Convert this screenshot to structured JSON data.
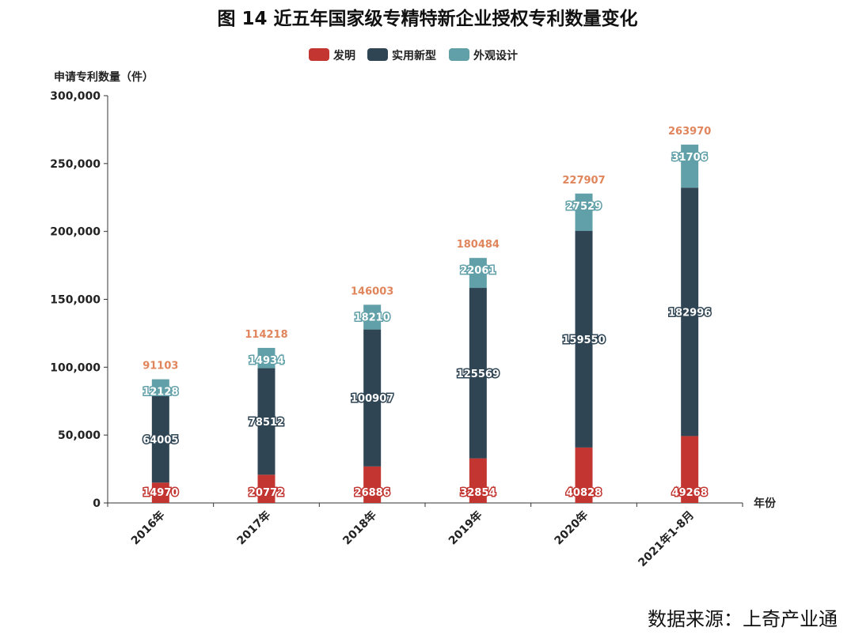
{
  "title": "图 14  近五年国家级专精特新企业授权专利数量变化",
  "source": "数据来源：上奇产业通",
  "chart_data": {
    "type": "bar",
    "stacked": true,
    "title": "图 14  近五年国家级专精特新企业授权专利数量变化",
    "xlabel": "年份",
    "ylabel": "申请专利数量（件）",
    "ylim": [
      0,
      300000
    ],
    "yticks": [
      0,
      50000,
      100000,
      150000,
      200000,
      250000,
      300000
    ],
    "ytick_labels": [
      "0",
      "50,000",
      "100,000",
      "150,000",
      "200,000",
      "250,000",
      "300,000"
    ],
    "grid": false,
    "legend_position": "top",
    "categories": [
      "2016年",
      "2017年",
      "2018年",
      "2019年",
      "2020年",
      "2021年1-8月"
    ],
    "series": [
      {
        "name": "发明",
        "color": "#c23531",
        "values": [
          14970,
          20772,
          26886,
          32854,
          40828,
          49268
        ]
      },
      {
        "name": "实用新型",
        "color": "#2f4554",
        "values": [
          64005,
          78512,
          100907,
          125569,
          159550,
          182996
        ]
      },
      {
        "name": "外观设计",
        "color": "#61a0a8",
        "values": [
          12128,
          14934,
          18210,
          22061,
          27529,
          31706
        ]
      }
    ],
    "totals": [
      91103,
      114218,
      146003,
      180484,
      227907,
      263970
    ],
    "total_label_color": "#e0855c"
  }
}
